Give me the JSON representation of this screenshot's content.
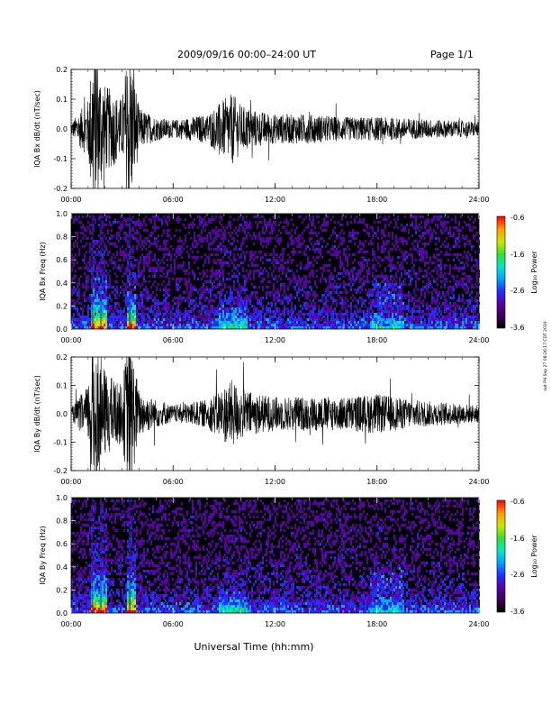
{
  "header": {
    "title": "2009/09/16  00:00–24:00 UT",
    "page": "Page 1/1"
  },
  "xlabel": "Universal Time (hh:mm)",
  "side_stamp": "not PH Sep 27 08:26:17 CDT 2019",
  "colorbar": {
    "label": "Log₁₀ Power",
    "ticks": [
      "-0.6",
      "-1.6",
      "-2.6",
      "-3.6"
    ],
    "colors": [
      "#000000",
      "#3a0050",
      "#5a00a8",
      "#2030ff",
      "#00a8ff",
      "#00e8c8",
      "#30e030",
      "#c8e800",
      "#ffa000",
      "#ff0000"
    ]
  },
  "chart_data": [
    {
      "type": "line",
      "ylabel": "IQA Bx dB/dt (nT/sec)",
      "xlim": [
        "00:00",
        "24:00"
      ],
      "ylim": [
        -0.2,
        0.2
      ],
      "x_ticks": [
        "00:00",
        "06:00",
        "12:00",
        "18:00",
        "24:00"
      ],
      "y_ticks": [
        "0.2",
        "0.1",
        "0.0",
        "-0.1",
        "-0.2"
      ],
      "x_hours": [
        0,
        1,
        1.3,
        2,
        3,
        3.4,
        4,
        5,
        6,
        8,
        9,
        9.5,
        10,
        11,
        12,
        14,
        16,
        18,
        20,
        22,
        24
      ],
      "amplitude": [
        0.02,
        0.1,
        0.3,
        0.15,
        0.1,
        0.3,
        0.07,
        0.04,
        0.03,
        0.05,
        0.1,
        0.12,
        0.08,
        0.06,
        0.05,
        0.05,
        0.04,
        0.04,
        0.035,
        0.03,
        0.025
      ],
      "series": [
        {
          "values": [
            0.0
          ]
        }
      ]
    },
    {
      "type": "heatmap",
      "ylabel": "IQA Bx Freq (Hz)",
      "xlim": [
        "00:00",
        "24:00"
      ],
      "ylim": [
        0.0,
        1.0
      ],
      "x_ticks": [
        "00:00",
        "06:00",
        "12:00",
        "18:00",
        "24:00"
      ],
      "y_ticks": [
        "1.0",
        "0.8",
        "0.6",
        "0.4",
        "0.2",
        "0.0"
      ],
      "color_range": [
        -3.6,
        -0.6
      ]
    },
    {
      "type": "line",
      "ylabel": "IQA By dB/dt (nT/sec)",
      "xlim": [
        "00:00",
        "24:00"
      ],
      "ylim": [
        -0.2,
        0.2
      ],
      "x_ticks": [
        "00:00",
        "06:00",
        "12:00",
        "18:00",
        "24:00"
      ],
      "y_ticks": [
        "0.2",
        "0.1",
        "0.0",
        "-0.1",
        "-0.2"
      ],
      "x_hours": [
        0,
        1,
        1.3,
        2,
        3,
        3.4,
        4,
        5,
        6,
        8,
        9,
        9.5,
        10,
        11,
        12,
        14,
        16,
        18,
        20,
        22,
        24
      ],
      "amplitude": [
        0.02,
        0.1,
        0.3,
        0.15,
        0.1,
        0.3,
        0.08,
        0.05,
        0.03,
        0.05,
        0.1,
        0.12,
        0.09,
        0.07,
        0.06,
        0.06,
        0.06,
        0.07,
        0.05,
        0.04,
        0.03
      ],
      "series": [
        {
          "values": [
            0.0
          ]
        }
      ]
    },
    {
      "type": "heatmap",
      "ylabel": "IQA By Freq (Hz)",
      "xlim": [
        "00:00",
        "24:00"
      ],
      "ylim": [
        0.0,
        1.0
      ],
      "x_ticks": [
        "00:00",
        "06:00",
        "12:00",
        "18:00",
        "24:00"
      ],
      "y_ticks": [
        "1.0",
        "0.8",
        "0.6",
        "0.4",
        "0.2",
        "0.0"
      ],
      "color_range": [
        -3.6,
        -0.6
      ]
    }
  ]
}
